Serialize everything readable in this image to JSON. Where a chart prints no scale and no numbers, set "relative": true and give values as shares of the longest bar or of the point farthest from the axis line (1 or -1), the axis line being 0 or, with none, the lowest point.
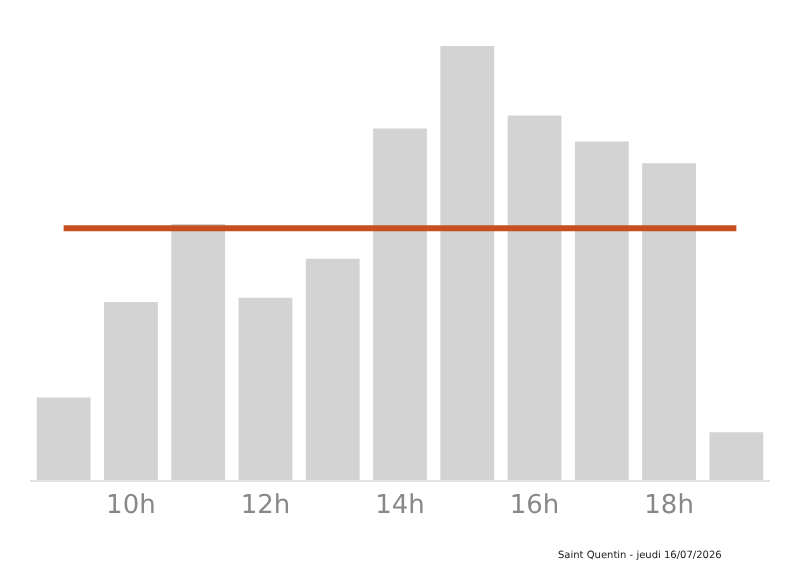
{
  "chart_data": {
    "type": "bar",
    "relative": true,
    "categories": [
      null,
      "10h",
      null,
      "12h",
      null,
      "14h",
      null,
      "16h",
      null,
      "18h",
      null
    ],
    "values": [
      0.19,
      0.41,
      0.59,
      0.42,
      0.51,
      0.81,
      1,
      0.84,
      0.78,
      0.73,
      0.11
    ],
    "color": "#d3d3d3",
    "ref_lines": [
      {
        "axis": "y",
        "value": 0.58,
        "color": "#c8501e"
      }
    ],
    "annotations": [
      "Saint Quentin - jeudi 16/07/2026"
    ],
    "grid": false
  }
}
